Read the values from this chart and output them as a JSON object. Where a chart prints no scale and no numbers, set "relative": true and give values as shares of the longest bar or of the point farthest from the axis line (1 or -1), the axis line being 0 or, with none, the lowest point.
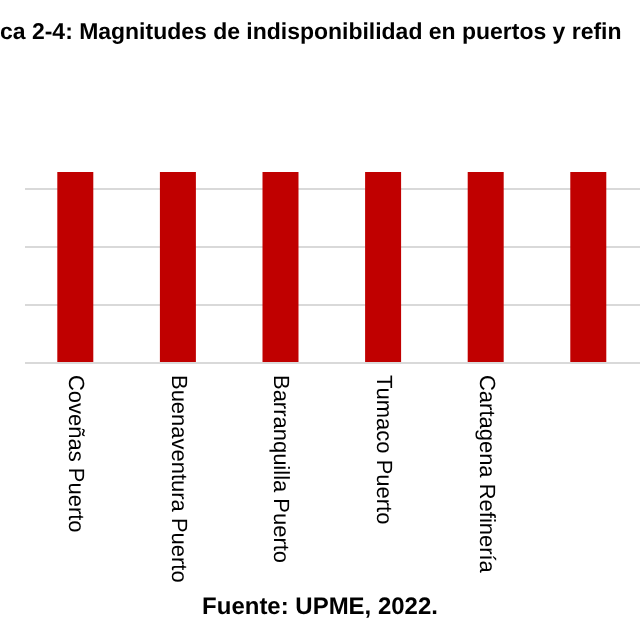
{
  "chart_data": {
    "type": "bar",
    "title": "ca 2-4: Magnitudes de indisponibilidad en puertos y refin",
    "categories": [
      "Coveñas Puerto",
      "Buenaventura Puerto",
      "Barranquilla Puerto",
      "Tumaco Puerto",
      "Cartagena Refinería",
      null
    ],
    "values": [
      1,
      1,
      1,
      1,
      1,
      1
    ],
    "color": "#c00000",
    "relative": true,
    "grid": "y",
    "annotations": [
      "Fuente: UPME, 2022."
    ]
  }
}
